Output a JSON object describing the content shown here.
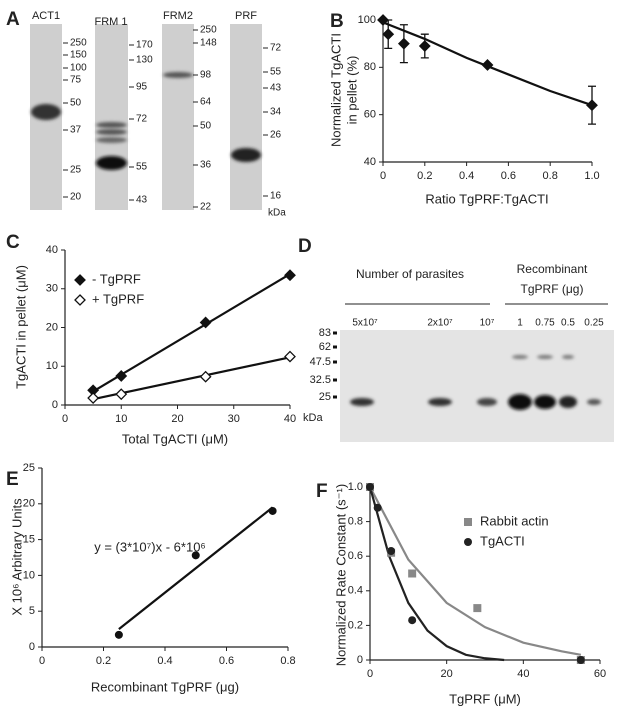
{
  "gel_a": {
    "label": "A",
    "unit": "kDa",
    "lanes": [
      {
        "name": "ACT1",
        "markers": [
          "250",
          "150",
          "100",
          "75",
          "50",
          "37",
          "25",
          "20"
        ]
      },
      {
        "name": "FRM 1",
        "markers": [
          "170",
          "130",
          "95",
          "72",
          "55",
          "43"
        ]
      },
      {
        "name": "FRM2",
        "markers": [
          "250",
          "148",
          "98",
          "64",
          "50",
          "36",
          "22"
        ]
      },
      {
        "name": "PRF",
        "markers": [
          "72",
          "55",
          "43",
          "34",
          "26",
          "16"
        ]
      }
    ]
  },
  "gel_d": {
    "label": "D",
    "parasites_title": "Number of parasites",
    "recombinant_title": [
      "Recombinant",
      "TgPRF (μg)"
    ],
    "lanes": [
      "5x10⁷",
      "2x10⁷",
      "10⁷",
      "1",
      "0.75",
      "0.5",
      "0.25"
    ],
    "markers": [
      "83",
      "62",
      "47.5",
      "32.5",
      "25"
    ],
    "unit": "kDa"
  },
  "chart_data": [
    {
      "type": "scatter",
      "label": "B",
      "y_label": [
        "Normalized TgACTI",
        "in pellet (%)"
      ],
      "x_label": "Ratio TgPRF:TgACTI",
      "xlim": [
        0,
        1
      ],
      "ylim": [
        40,
        100
      ],
      "xticks": [
        0,
        {
          "value": 0.2,
          "label": "0.2"
        },
        {
          "value": 0.4,
          "label": "0.4"
        },
        {
          "value": 0.6,
          "label": "0.6"
        },
        {
          "value": 0.8,
          "label": "0.8"
        },
        {
          "value": 1,
          "label": "1.0"
        }
      ],
      "yticks": [
        40,
        60,
        80,
        100
      ],
      "series": [
        {
          "color": "#111",
          "marker": "diamond",
          "x": [
            0,
            0.025,
            0.1,
            0.2,
            0.5,
            1
          ],
          "values": [
            100,
            94,
            90,
            89,
            81,
            64
          ],
          "errors": [
            null,
            6,
            8,
            5,
            null,
            8
          ]
        }
      ],
      "fits": [
        {
          "color": "#111",
          "x": [
            0,
            0.2,
            0.4,
            0.6,
            0.8,
            1
          ],
          "y": [
            99,
            92,
            84,
            77,
            70,
            64
          ]
        }
      ]
    },
    {
      "type": "scatter",
      "label": "C",
      "y_label": [
        "TgACTI in pellet (μM)"
      ],
      "x_label": "Total TgACTI (μM)",
      "xlim": [
        0,
        40
      ],
      "ylim": [
        0,
        40
      ],
      "xticks": [
        0,
        10,
        20,
        30,
        40
      ],
      "yticks": [
        0,
        10,
        20,
        30,
        40
      ],
      "series": [
        {
          "name": "- TgPRF",
          "color": "#111",
          "marker": "diamond",
          "x": [
            5,
            10,
            25,
            40
          ],
          "values": [
            3.8,
            7.5,
            21.3,
            33.5
          ]
        },
        {
          "name": "+ TgPRF",
          "color": "#111",
          "marker": "diamond-open",
          "x": [
            5,
            10,
            25,
            40
          ],
          "values": [
            1.8,
            2.8,
            7.3,
            12.5
          ]
        }
      ],
      "fits": [
        {
          "color": "#111",
          "x": [
            5,
            40
          ],
          "y": [
            3.5,
            33.8
          ]
        },
        {
          "color": "#111",
          "x": [
            5,
            40
          ],
          "y": [
            1.5,
            12.3
          ]
        }
      ]
    },
    {
      "type": "scatter",
      "label": "E",
      "y_label": [
        "X 10⁶ Arbitrary Units"
      ],
      "x_label": "Recombinant TgPRF (μg)",
      "annotation": "y = (3*10⁷)x - 6*10⁶",
      "xlim": [
        0,
        0.8
      ],
      "ylim": [
        0,
        25
      ],
      "xticks": [
        0,
        0.2,
        0.4,
        0.6,
        0.8
      ],
      "yticks": [
        0,
        5,
        10,
        15,
        20,
        25
      ],
      "series": [
        {
          "color": "#111",
          "marker": "circle",
          "x": [
            0.25,
            0.5,
            0.75
          ],
          "values": [
            1.7,
            12.8,
            19
          ]
        }
      ],
      "fits": [
        {
          "color": "#111",
          "x": [
            0.25,
            0.75
          ],
          "y": [
            2.5,
            19.5
          ]
        }
      ]
    },
    {
      "type": "scatter",
      "label": "F",
      "y_label": [
        "Normalized Rate Constant (s⁻¹)"
      ],
      "x_label": "TgPRF (μM)",
      "xlim": [
        0,
        60
      ],
      "ylim": [
        0,
        1
      ],
      "xticks": [
        0,
        20,
        40,
        60
      ],
      "yticks": [
        0,
        {
          "value": 0.2,
          "label": "0.2"
        },
        {
          "value": 0.4,
          "label": "0.4"
        },
        {
          "value": 0.6,
          "label": "0.6"
        },
        {
          "value": 0.8,
          "label": "0.8"
        },
        {
          "value": 1,
          "label": "1.0"
        }
      ],
      "series": [
        {
          "name": "Rabbit actin",
          "color": "#888",
          "marker": "square",
          "x": [
            0,
            5.5,
            11,
            28,
            55
          ],
          "values": [
            1,
            0.62,
            0.5,
            0.3,
            0
          ]
        },
        {
          "name": "TgACTI",
          "color": "#222",
          "marker": "circle",
          "x": [
            0,
            2,
            5.5,
            11,
            55
          ],
          "values": [
            1,
            0.88,
            0.63,
            0.23,
            0
          ]
        }
      ],
      "fits": [
        {
          "color": "#888",
          "x": [
            0,
            10,
            20,
            30,
            40,
            50,
            55
          ],
          "y": [
            1,
            0.58,
            0.33,
            0.19,
            0.1,
            0.05,
            0.03
          ]
        },
        {
          "color": "#222",
          "x": [
            0,
            5,
            10,
            15,
            20,
            25,
            30,
            35
          ],
          "y": [
            1,
            0.6,
            0.33,
            0.17,
            0.08,
            0.03,
            0.01,
            0
          ]
        }
      ]
    }
  ]
}
